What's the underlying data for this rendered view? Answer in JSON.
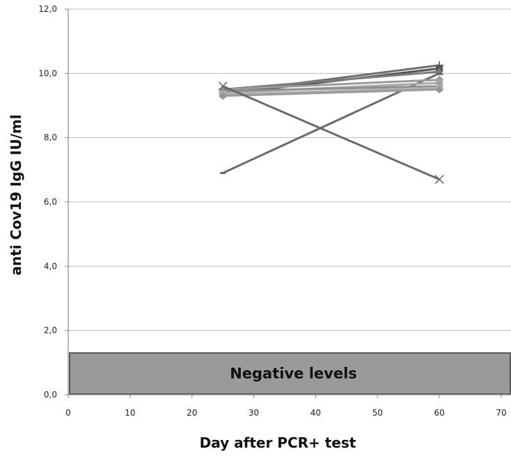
{
  "chart_data": {
    "type": "line",
    "title": "",
    "xlabel": "Day after PCR+ test",
    "ylabel": "anti Cov19 IgG IU/ml",
    "xlim": [
      0,
      70
    ],
    "ylim": [
      0,
      12
    ],
    "x_ticks": [
      "0",
      "10",
      "20",
      "30",
      "40",
      "50",
      "60",
      "70"
    ],
    "y_ticks": [
      "0,0",
      "2,0",
      "4,0",
      "6,0",
      "8,0",
      "10,0",
      "12,0"
    ],
    "grid": "horizontal",
    "legend": "none",
    "band": {
      "label": "Negative levels",
      "y_from": 0,
      "y_to": 1.3,
      "color": "#9a9a9a"
    },
    "series": [
      {
        "x": [
          25,
          60
        ],
        "y": [
          9.4,
          10.25
        ],
        "color": "#6e6e6e",
        "marker": "plus"
      },
      {
        "x": [
          25,
          60
        ],
        "y": [
          9.35,
          10.15
        ],
        "color": "#555555",
        "marker": "square"
      },
      {
        "x": [
          25,
          60
        ],
        "y": [
          9.5,
          10.05
        ],
        "color": "#7c7c7c",
        "marker": "triangle"
      },
      {
        "x": [
          25,
          60
        ],
        "y": [
          6.9,
          10.0
        ],
        "color": "#6a6a6a",
        "marker": "dash"
      },
      {
        "x": [
          25,
          60
        ],
        "y": [
          9.5,
          9.8
        ],
        "color": "#9a9a9a",
        "marker": "diamond"
      },
      {
        "x": [
          25,
          60
        ],
        "y": [
          9.4,
          9.7
        ],
        "color": "#a8a8a8",
        "marker": "square"
      },
      {
        "x": [
          25,
          60
        ],
        "y": [
          9.45,
          9.6
        ],
        "color": "#8e8e8e",
        "marker": "circle"
      },
      {
        "x": [
          25,
          60
        ],
        "y": [
          9.35,
          9.55
        ],
        "color": "#b2b2b2",
        "marker": "square"
      },
      {
        "x": [
          25,
          60
        ],
        "y": [
          9.3,
          9.5
        ],
        "color": "#999999",
        "marker": "diamond"
      },
      {
        "x": [
          25,
          60
        ],
        "y": [
          9.6,
          6.7
        ],
        "color": "#6a6a6a",
        "marker": "x"
      }
    ]
  }
}
